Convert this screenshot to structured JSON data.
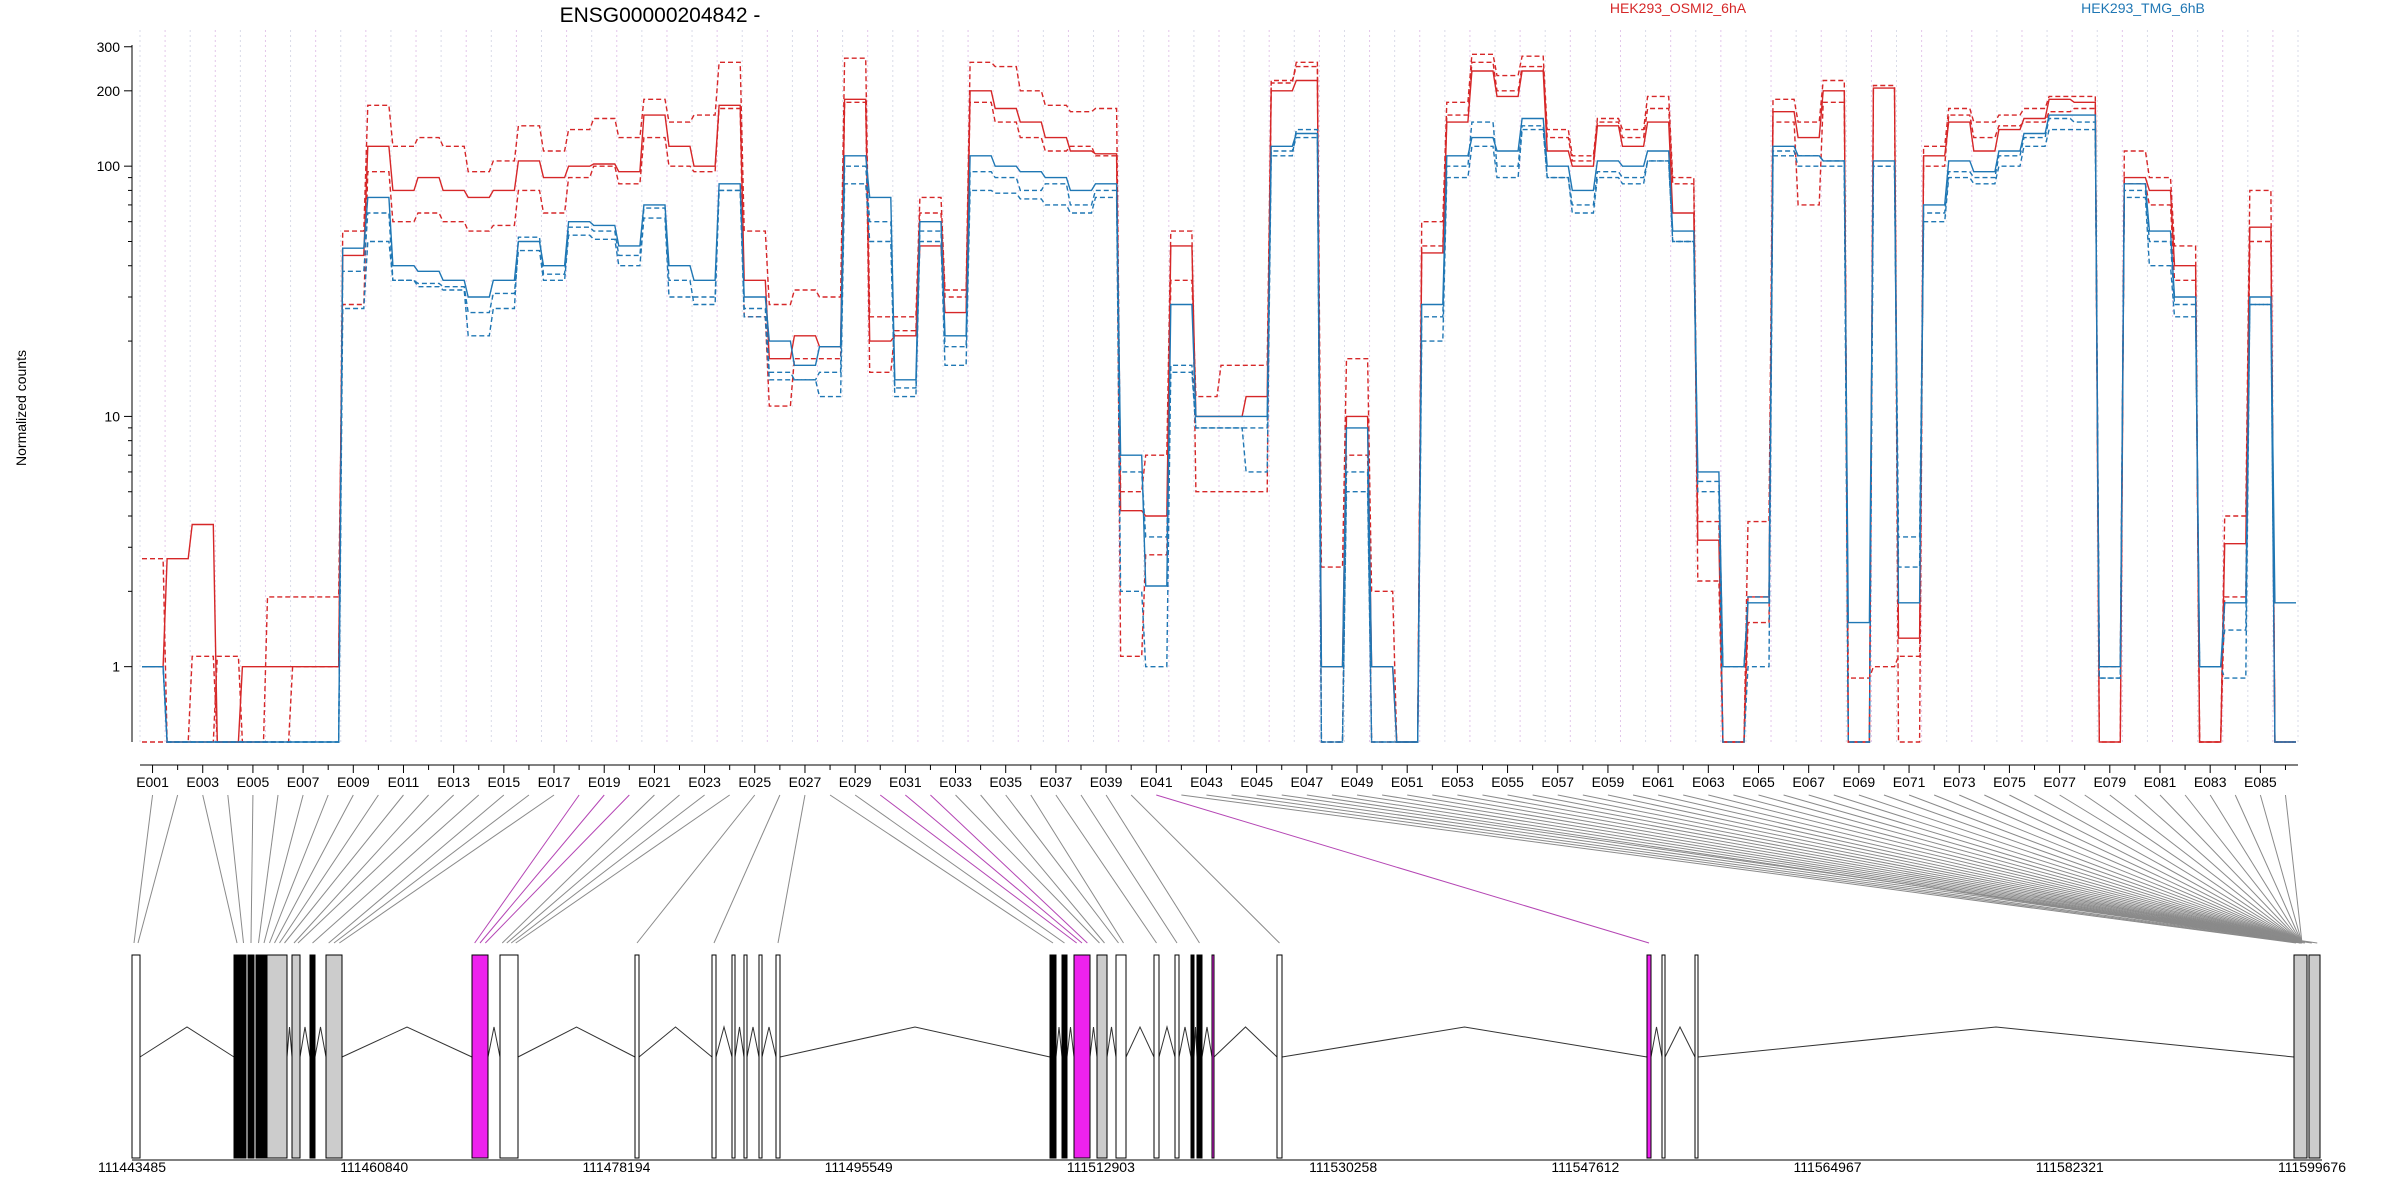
{
  "chart_data": {
    "type": "line",
    "title": "ENSG00000204842 -",
    "ylabel": "Normalized counts",
    "yscale": "log",
    "ylim": [
      0.5,
      350
    ],
    "yticks": [
      1,
      10,
      100,
      200,
      300
    ],
    "grid": "vertical dotted lines at exon boundaries",
    "legend": [
      {
        "name": "HEK293_OSMI2_6hA",
        "color": "#d62728"
      },
      {
        "name": "HEK293_TMG_6hB",
        "color": "#1f77b4"
      }
    ],
    "exon_ticks": [
      "E001",
      "E003",
      "E005",
      "E007",
      "E009",
      "E011",
      "E013",
      "E015",
      "E017",
      "E019",
      "E021",
      "E023",
      "E025",
      "E027",
      "E029",
      "E031",
      "E033",
      "E035",
      "E037",
      "E039",
      "E041",
      "E043",
      "E045",
      "E047",
      "E049",
      "E051",
      "E053",
      "E055",
      "E057",
      "E059",
      "E061",
      "E063",
      "E065",
      "E067",
      "E069",
      "E071",
      "E073",
      "E075",
      "E077",
      "E079",
      "E081",
      "E083",
      "E085"
    ],
    "genomic_ticks": [
      "111443485",
      "111460840",
      "111478194",
      "111495549",
      "111512903",
      "111530258",
      "111547612",
      "111564967",
      "111582321",
      "111599676"
    ],
    "series": [
      {
        "name": "HEK293_OSMI2_6hA rep1",
        "color": "#d62728",
        "dash": "5,3",
        "values": [
          2.7,
          0.5,
          0.5,
          1.1,
          0.5,
          0.5,
          1.0,
          1.0,
          55,
          175,
          120,
          130,
          120,
          95,
          105,
          145,
          115,
          140,
          155,
          130,
          185,
          150,
          160,
          260,
          55,
          28,
          32,
          30,
          270,
          25,
          25,
          75,
          32,
          260,
          250,
          200,
          175,
          165,
          170,
          5,
          7,
          55,
          5,
          5,
          5,
          215,
          260,
          2.5,
          17,
          2.0,
          0.5,
          60,
          180,
          280,
          230,
          275,
          140,
          110,
          155,
          140,
          190,
          90,
          3.8,
          0.5,
          3.8,
          185,
          150,
          220,
          0.5,
          210,
          0.5,
          120,
          170,
          150,
          160,
          170,
          190,
          190,
          0.5,
          115,
          90,
          48,
          0.5,
          4.0,
          80,
          0.5
        ]
      },
      {
        "name": "HEK293_OSMI2_6hA rep2",
        "color": "#d62728",
        "dash": "",
        "values": [
          1.0,
          2.7,
          3.7,
          0.5,
          1.0,
          1.0,
          1.0,
          1.0,
          44,
          120,
          80,
          90,
          80,
          75,
          80,
          105,
          90,
          100,
          102,
          95,
          160,
          120,
          100,
          175,
          35,
          17,
          21,
          19,
          185,
          20,
          21,
          48,
          26,
          200,
          170,
          150,
          130,
          115,
          112,
          4.2,
          4.0,
          48,
          10,
          10,
          12,
          200,
          220,
          1.0,
          10,
          1.0,
          0.5,
          45,
          150,
          240,
          190,
          240,
          115,
          100,
          145,
          120,
          150,
          65,
          3.2,
          0.5,
          1.9,
          165,
          130,
          200,
          0.5,
          205,
          1.3,
          110,
          150,
          115,
          140,
          155,
          185,
          180,
          0.5,
          90,
          80,
          40,
          0.5,
          3.1,
          57,
          0.5
        ]
      },
      {
        "name": "HEK293_OSMI2_6hA rep3",
        "color": "#d62728",
        "dash": "5,3",
        "values": [
          0.5,
          0.5,
          1.1,
          0.5,
          0.5,
          1.9,
          1.9,
          1.9,
          28,
          95,
          60,
          65,
          60,
          55,
          58,
          80,
          65,
          90,
          100,
          85,
          130,
          100,
          95,
          170,
          25,
          11,
          17,
          17,
          180,
          15,
          22,
          65,
          30,
          180,
          150,
          130,
          115,
          120,
          110,
          1.1,
          2.8,
          35,
          12,
          16,
          16,
          220,
          250,
          0.5,
          7,
          0.5,
          0.5,
          48,
          160,
          260,
          200,
          250,
          130,
          105,
          150,
          130,
          170,
          85,
          2.2,
          0.5,
          1.5,
          150,
          70,
          180,
          0.9,
          1.0,
          1.1,
          100,
          160,
          130,
          145,
          150,
          165,
          170,
          1.0,
          85,
          70,
          35,
          0.5,
          1.9,
          50,
          0.5
        ]
      },
      {
        "name": "HEK293_TMG_6hB rep1",
        "color": "#1f77b4",
        "dash": "",
        "values": [
          1.0,
          0.5,
          0.5,
          0.5,
          0.5,
          0.5,
          0.5,
          0.5,
          47,
          75,
          40,
          38,
          35,
          30,
          35,
          50,
          40,
          60,
          58,
          48,
          70,
          40,
          35,
          85,
          30,
          20,
          16,
          19,
          110,
          75,
          14,
          60,
          21,
          110,
          100,
          95,
          90,
          80,
          85,
          7,
          2.1,
          28,
          10,
          10,
          10,
          120,
          135,
          1.0,
          9,
          1.0,
          0.5,
          28,
          110,
          130,
          115,
          155,
          100,
          80,
          105,
          100,
          115,
          55,
          6.0,
          1.0,
          1.8,
          120,
          110,
          105,
          1.5,
          105,
          1.8,
          70,
          105,
          95,
          115,
          135,
          160,
          160,
          1.0,
          85,
          55,
          30,
          1.0,
          1.8,
          30,
          1.8
        ]
      },
      {
        "name": "HEK293_TMG_6hB rep2",
        "color": "#1f77b4",
        "dash": "5,3",
        "values": [
          1.0,
          0.5,
          0.5,
          0.5,
          0.5,
          0.5,
          0.5,
          0.5,
          38,
          65,
          35,
          33,
          32,
          21,
          27,
          52,
          37,
          57,
          55,
          44,
          68,
          35,
          28,
          80,
          27,
          15,
          14,
          15,
          100,
          60,
          13,
          55,
          19,
          95,
          90,
          80,
          85,
          70,
          80,
          6,
          3.3,
          15,
          9,
          9,
          6,
          110,
          140,
          0.5,
          6,
          0.5,
          0.5,
          25,
          100,
          150,
          100,
          145,
          90,
          70,
          95,
          90,
          105,
          50,
          5.5,
          1.0,
          1.9,
          115,
          100,
          100,
          0.5,
          100,
          3.3,
          65,
          95,
          90,
          110,
          130,
          155,
          150,
          0.9,
          80,
          50,
          28,
          1.0,
          0.9,
          28,
          0.5
        ]
      },
      {
        "name": "HEK293_TMG_6hB rep3",
        "color": "#1f77b4",
        "dash": "5,3",
        "values": [
          1.0,
          0.5,
          0.5,
          0.5,
          0.5,
          0.5,
          0.5,
          0.5,
          27,
          50,
          35,
          34,
          33,
          26,
          31,
          46,
          35,
          53,
          51,
          40,
          62,
          30,
          30,
          80,
          25,
          14,
          14,
          12,
          85,
          50,
          12,
          50,
          16,
          80,
          78,
          74,
          70,
          65,
          75,
          2.0,
          1.0,
          16,
          9,
          9,
          9,
          115,
          130,
          0.5,
          5,
          0.5,
          0.5,
          20,
          90,
          120,
          90,
          140,
          90,
          65,
          90,
          85,
          105,
          50,
          5.0,
          0.5,
          1.0,
          110,
          110,
          105,
          0.5,
          100,
          2.5,
          60,
          90,
          85,
          100,
          120,
          140,
          140,
          0.9,
          75,
          40,
          25,
          1.0,
          1.4,
          28,
          0.5
        ]
      }
    ],
    "gene_model": [
      [
        0,
        8,
        "white"
      ],
      [
        102,
        108,
        "black"
      ],
      [
        109,
        114,
        "black"
      ],
      [
        116,
        122,
        "black"
      ],
      [
        124,
        129,
        "black"
      ],
      [
        130,
        134,
        "black"
      ],
      [
        135,
        155,
        "gray"
      ],
      [
        160,
        168,
        "gray"
      ],
      [
        178,
        183,
        "black"
      ],
      [
        194,
        210,
        "gray"
      ],
      [
        340,
        356,
        "magenta"
      ],
      [
        368,
        386,
        "white"
      ],
      [
        503,
        507,
        "white"
      ],
      [
        580,
        584,
        "white"
      ],
      [
        600,
        603,
        "white"
      ],
      [
        612,
        615,
        "white"
      ],
      [
        627,
        630,
        "white"
      ],
      [
        644,
        648,
        "white"
      ],
      [
        918,
        924,
        "black"
      ],
      [
        930,
        935,
        "black"
      ],
      [
        942,
        958,
        "magenta"
      ],
      [
        965,
        975,
        "gray"
      ],
      [
        984,
        994,
        "white"
      ],
      [
        1022,
        1027,
        "white"
      ],
      [
        1043,
        1047,
        "white"
      ],
      [
        1059,
        1062,
        "black"
      ],
      [
        1065,
        1070,
        "black"
      ],
      [
        1080,
        1082,
        "magenta"
      ],
      [
        1145,
        1150,
        "white"
      ],
      [
        1515,
        1519,
        "magenta"
      ],
      [
        1530,
        1533,
        "white"
      ],
      [
        1563,
        1566,
        "white"
      ],
      [
        2162,
        2175,
        "gray"
      ],
      [
        2177,
        2188,
        "gray"
      ]
    ]
  }
}
